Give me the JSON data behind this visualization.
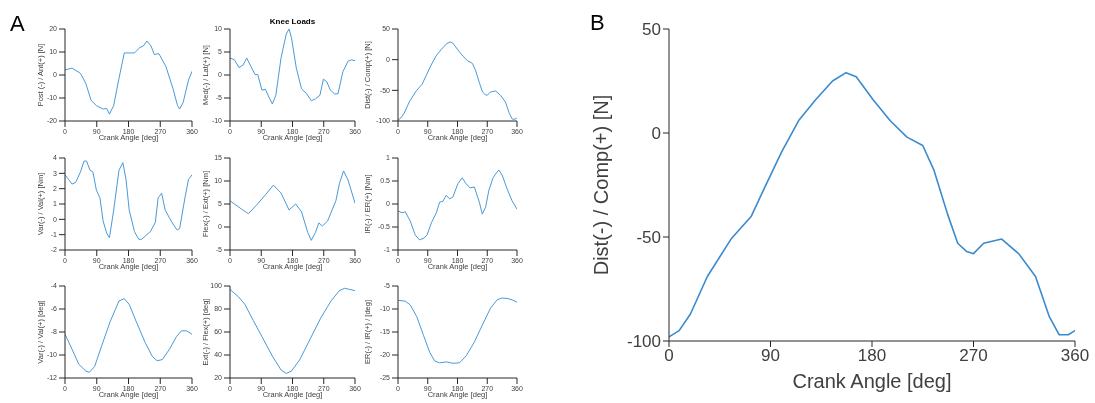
{
  "chart_data": [
    {
      "type": "line",
      "annotations": [
        "A"
      ],
      "xlabel": "Crank Angle [deg]",
      "ylabel": "Post (-) / Ant(+) [N]",
      "xlim": [
        0,
        360
      ],
      "xticks": [
        0,
        90,
        180,
        270,
        360
      ],
      "ylim": [
        -20,
        20
      ],
      "yticks": [
        -20,
        -10,
        0,
        10,
        20
      ],
      "x": [
        0,
        20,
        44,
        59,
        74,
        89,
        108,
        118,
        126,
        138,
        153,
        168,
        182,
        197,
        212,
        222,
        232,
        244,
        253,
        266,
        286,
        306,
        319,
        325,
        335,
        350,
        360
      ],
      "series": [
        {
          "color": "#4a9ad8",
          "values": [
            2.2,
            3,
            0.7,
            -3.7,
            -11,
            -13.3,
            -14.8,
            -14.5,
            -17,
            -13.3,
            -1.5,
            9.6,
            9.6,
            9.6,
            11.9,
            12.6,
            14.8,
            12.6,
            8.9,
            9.3,
            3.7,
            -5.9,
            -13.3,
            -14.8,
            -11.9,
            -2.2,
            1.5
          ]
        }
      ]
    },
    {
      "type": "line",
      "title": "Knee Loads",
      "xlabel": "Crank Angle [deg]",
      "ylabel": "Med(-) / Lat(+) [N]",
      "xlim": [
        0,
        360
      ],
      "xticks": [
        0,
        90,
        180,
        270,
        360
      ],
      "ylim": [
        -10,
        10
      ],
      "yticks": [
        -10,
        -5,
        0,
        5,
        10
      ],
      "x": [
        0,
        13,
        26,
        38,
        48,
        58,
        72,
        80,
        92,
        102,
        112,
        122,
        132,
        147,
        162,
        170,
        177,
        191,
        206,
        221,
        234,
        246,
        259,
        269,
        279,
        289,
        301,
        311,
        325,
        340,
        350,
        360
      ],
      "series": [
        {
          "color": "#4a9ad8",
          "values": [
            3.7,
            3.3,
            1.6,
            2.2,
            3.7,
            2.2,
            0.1,
            0.1,
            -3.3,
            -3.1,
            -4.8,
            -6.3,
            -4.4,
            3.7,
            8.9,
            10,
            8.1,
            1.5,
            -3,
            -4.1,
            -5.6,
            -5.2,
            -4.4,
            -0.9,
            -1.5,
            -3.3,
            -4.1,
            -4.1,
            0.7,
            3,
            3.3,
            3.1
          ]
        }
      ]
    },
    {
      "type": "line",
      "xlabel": "Crank Angle [deg]",
      "ylabel": "Dist(-) / Comp(+) [N]",
      "xlim": [
        0,
        360
      ],
      "xticks": [
        0,
        90,
        180,
        270,
        360
      ],
      "ylim": [
        -100,
        50
      ],
      "yticks": [
        -100,
        -50,
        0,
        50
      ],
      "x": [
        0,
        9,
        19,
        34,
        55,
        73,
        85,
        100,
        115,
        130,
        145,
        157,
        166,
        181,
        196,
        211,
        225,
        235,
        247,
        256,
        264,
        270,
        279,
        295,
        310,
        325,
        337,
        346,
        354,
        360
      ],
      "series": [
        {
          "color": "#4a9ad8",
          "values": [
            -98,
            -95,
            -87,
            -69,
            -51,
            -40,
            -26,
            -9,
            6,
            16,
            25,
            29,
            27,
            16,
            6,
            -2,
            -6,
            -18,
            -39,
            -53,
            -57,
            -58,
            -53,
            -51,
            -58,
            -69,
            -88,
            -97,
            -97,
            -95
          ]
        }
      ]
    },
    {
      "type": "line",
      "xlabel": "Crank Angle [deg]",
      "ylabel": "Var(-) / Val(+) [Nm]",
      "xlim": [
        0,
        360
      ],
      "xticks": [
        0,
        90,
        180,
        270,
        360
      ],
      "ylim": [
        -2,
        4
      ],
      "yticks": [
        -2,
        -1,
        0,
        1,
        2,
        3,
        4
      ],
      "x": [
        0,
        10,
        20,
        30,
        44,
        54,
        61,
        71,
        79,
        89,
        99,
        108,
        118,
        126,
        138,
        153,
        164,
        173,
        182,
        197,
        209,
        217,
        227,
        242,
        256,
        264,
        274,
        284,
        296,
        306,
        318,
        325,
        340,
        350,
        360
      ],
      "series": [
        {
          "color": "#4a9ad8",
          "values": [
            2.9,
            2.6,
            2.3,
            2.4,
            3.1,
            3.8,
            3.8,
            3.2,
            3.1,
            1.9,
            1.4,
            -0.1,
            -0.9,
            -1.2,
            0.6,
            3.2,
            3.7,
            2.6,
            0.6,
            -0.8,
            -1.3,
            -1.3,
            -1.1,
            -0.8,
            -0.2,
            1.4,
            1.7,
            0.6,
            0.1,
            -0.3,
            -0.7,
            -0.6,
            1.4,
            2.6,
            2.9
          ]
        }
      ]
    },
    {
      "type": "line",
      "xlabel": "Crank Angle [deg]",
      "ylabel": "Flex(-) / Ext(+) [Nm]",
      "xlim": [
        0,
        360
      ],
      "xticks": [
        0,
        90,
        180,
        270,
        360
      ],
      "ylim": [
        -5,
        15
      ],
      "yticks": [
        -5,
        0,
        5,
        10,
        15
      ],
      "x": [
        0,
        33,
        53,
        77,
        102,
        125,
        147,
        170,
        189,
        206,
        224,
        234,
        246,
        256,
        266,
        281,
        305,
        315,
        327,
        340,
        360
      ],
      "series": [
        {
          "color": "#4a9ad8",
          "values": [
            5.7,
            3.9,
            2.9,
            4.8,
            7,
            9.1,
            7.4,
            3.7,
            5,
            3.3,
            -1.2,
            -2.9,
            -1.2,
            0.9,
            0.2,
            1.3,
            5.7,
            9.4,
            12.2,
            10.2,
            5.2
          ]
        }
      ]
    },
    {
      "type": "line",
      "xlabel": "Crank Angle [deg]",
      "ylabel": "IR(-) / ER(+) [Nm]",
      "xlim": [
        0,
        360
      ],
      "xticks": [
        0,
        90,
        180,
        270,
        360
      ],
      "ylim": [
        -1,
        1
      ],
      "yticks": [
        -1,
        -0.5,
        0,
        0.5,
        1
      ],
      "x": [
        0,
        12,
        22,
        37,
        52,
        65,
        79,
        88,
        101,
        116,
        126,
        136,
        146,
        156,
        166,
        181,
        194,
        206,
        218,
        231,
        246,
        255,
        265,
        275,
        287,
        295,
        305,
        315,
        330,
        345,
        360
      ],
      "series": [
        {
          "color": "#4a9ad8",
          "values": [
            -0.15,
            -0.19,
            -0.17,
            -0.37,
            -0.67,
            -0.78,
            -0.74,
            -0.67,
            -0.41,
            -0.19,
            0.04,
            0.06,
            0.19,
            0.11,
            0.15,
            0.44,
            0.57,
            0.44,
            0.35,
            0.37,
            0.04,
            -0.22,
            -0.07,
            0.3,
            0.56,
            0.65,
            0.74,
            0.63,
            0.33,
            0.07,
            -0.11
          ]
        }
      ]
    },
    {
      "type": "line",
      "xlabel": "Crank Angle [deg]",
      "ylabel": "Var(-) / Val(+) [deg]",
      "xlim": [
        0,
        360
      ],
      "xticks": [
        0,
        90,
        180,
        270,
        360
      ],
      "ylim": [
        -12,
        -4
      ],
      "yticks": [
        -12,
        -10,
        -8,
        -6,
        -4
      ],
      "x": [
        0,
        20,
        39,
        59,
        69,
        84,
        104,
        128,
        153,
        168,
        182,
        202,
        227,
        247,
        261,
        276,
        296,
        316,
        330,
        345,
        360
      ],
      "series": [
        {
          "color": "#4a9ad8",
          "values": [
            -8.2,
            -9.5,
            -10.8,
            -11.4,
            -11.5,
            -11,
            -9.2,
            -7.1,
            -5.3,
            -5.1,
            -5.6,
            -7.1,
            -8.9,
            -10.1,
            -10.5,
            -10.4,
            -9.5,
            -8.4,
            -7.9,
            -7.9,
            -8.2
          ]
        }
      ]
    },
    {
      "type": "line",
      "xlabel": "Crank Angle [deg]",
      "ylabel": "Ext(-) / Flex(+) [deg]",
      "xlim": [
        0,
        360
      ],
      "xticks": [
        0,
        90,
        180,
        270,
        360
      ],
      "ylim": [
        20,
        100
      ],
      "yticks": [
        20,
        40,
        60,
        80,
        100
      ],
      "x": [
        0,
        23,
        43,
        67,
        92,
        122,
        147,
        162,
        177,
        201,
        231,
        261,
        291,
        315,
        330,
        345,
        360
      ],
      "series": [
        {
          "color": "#4a9ad8",
          "values": [
            97,
            91,
            84,
            70,
            56,
            39,
            27,
            24,
            26,
            36,
            54,
            72,
            87,
            96,
            98,
            97,
            96
          ]
        }
      ]
    },
    {
      "type": "line",
      "xlabel": "Crank Angle [deg]",
      "ylabel": "ER(-) / IR(+) / [deg]",
      "xlim": [
        0,
        360
      ],
      "xticks": [
        0,
        90,
        180,
        270,
        360
      ],
      "ylim": [
        -25,
        -5
      ],
      "yticks": [
        -25,
        -20,
        -15,
        -10,
        -5
      ],
      "x": [
        0,
        22,
        37,
        57,
        77,
        96,
        111,
        126,
        146,
        166,
        186,
        206,
        231,
        255,
        280,
        300,
        315,
        330,
        345,
        360
      ],
      "series": [
        {
          "color": "#4a9ad8",
          "values": [
            -8.1,
            -8.3,
            -9.1,
            -11.7,
            -15.7,
            -19.4,
            -21.3,
            -21.7,
            -21.5,
            -21.8,
            -21.7,
            -20.2,
            -17.2,
            -13.5,
            -9.8,
            -8,
            -7.6,
            -7.7,
            -8,
            -8.5
          ]
        }
      ]
    },
    {
      "type": "line",
      "annotations": [
        "B"
      ],
      "xlabel": "Crank Angle [deg]",
      "ylabel": "Dist(-) / Comp(+) [N]",
      "xlim": [
        0,
        360
      ],
      "xticks": [
        0,
        90,
        180,
        270,
        360
      ],
      "ylim": [
        -100,
        50
      ],
      "yticks": [
        -100,
        -50,
        0,
        50
      ],
      "x": [
        0,
        9,
        19,
        34,
        55,
        73,
        85,
        100,
        115,
        130,
        145,
        157,
        166,
        181,
        196,
        211,
        225,
        235,
        247,
        256,
        264,
        270,
        279,
        295,
        310,
        325,
        337,
        346,
        354,
        360
      ],
      "series": [
        {
          "color": "#3a8ad0",
          "values": [
            -98,
            -95,
            -87,
            -69,
            -51,
            -40,
            -26,
            -9,
            6,
            16,
            25,
            29,
            27,
            16,
            6,
            -2,
            -6,
            -18,
            -39,
            -53,
            -57,
            -58,
            -53,
            -51,
            -58,
            -69,
            -88,
            -97,
            -97,
            -95
          ]
        }
      ]
    }
  ]
}
